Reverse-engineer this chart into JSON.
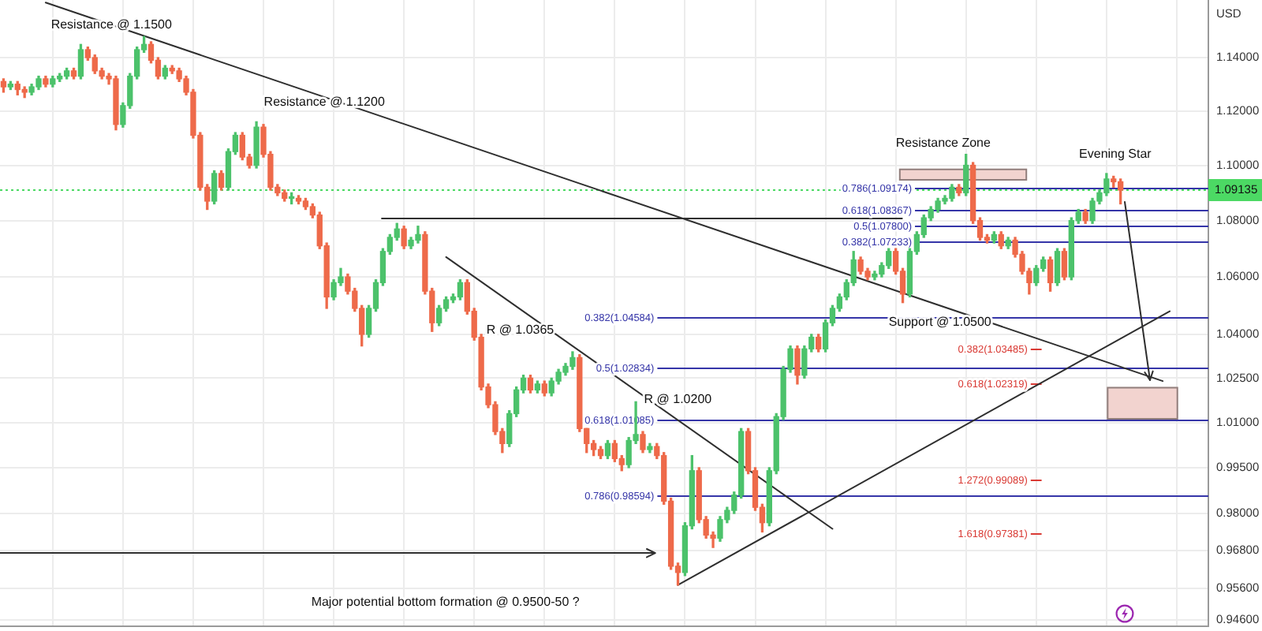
{
  "chart_data": {
    "type": "candlestick",
    "ylabel": "USD",
    "log": true,
    "grid": true,
    "tick_labels": "y",
    "marker": "none",
    "ylim": [
      0.944,
      1.162
    ],
    "yticks": [
      {
        "value": 0.946,
        "label": "0.94600"
      },
      {
        "value": 0.956,
        "label": "0.95600"
      },
      {
        "value": 0.968,
        "label": "0.96800"
      },
      {
        "value": 0.98,
        "label": "0.98000"
      },
      {
        "value": 0.995,
        "label": "0.99500"
      },
      {
        "value": 1.01,
        "label": "1.01000"
      },
      {
        "value": 1.025,
        "label": "1.02500"
      },
      {
        "value": 1.04,
        "label": "1.04000"
      },
      {
        "value": 1.06,
        "label": "1.06000"
      },
      {
        "value": 1.08,
        "label": "1.08000"
      },
      {
        "value": 1.1,
        "label": "1.10000"
      },
      {
        "value": 1.12,
        "label": "1.12000"
      },
      {
        "value": 1.14,
        "label": "1.14000"
      }
    ],
    "categories": [
      null,
      null,
      null,
      null,
      null,
      null,
      null,
      null,
      null,
      null,
      null,
      null,
      null,
      null,
      null,
      null,
      null,
      null,
      null,
      null,
      null,
      null,
      null,
      null,
      null,
      null,
      null,
      null,
      null,
      null,
      null,
      null,
      null,
      null,
      null,
      null,
      null,
      null,
      null,
      null,
      null,
      null,
      null,
      null,
      null,
      null,
      null,
      null,
      null,
      null,
      null,
      null,
      null,
      null,
      null,
      null,
      null,
      null,
      null,
      null,
      null,
      null,
      null,
      null,
      null,
      null,
      null,
      null,
      null,
      null,
      null,
      null,
      null,
      null,
      null,
      null,
      null,
      null,
      null,
      null,
      null,
      null,
      null,
      null,
      null,
      null,
      null,
      null,
      null,
      null,
      null,
      null,
      null,
      null,
      null,
      null,
      null,
      null,
      null,
      null,
      null,
      null,
      null,
      null,
      null,
      null,
      null,
      null,
      null,
      null,
      null,
      null,
      null,
      null,
      null,
      null,
      null,
      null,
      null,
      null,
      null,
      null,
      null,
      null,
      null,
      null,
      null,
      null,
      null,
      null,
      null,
      null,
      null,
      null,
      null,
      null,
      null,
      null,
      null,
      null,
      null,
      null,
      null,
      null,
      null,
      null,
      null,
      null,
      null,
      null,
      null,
      null,
      null,
      null,
      null,
      null,
      null,
      null,
      null,
      null,
      null,
      null,
      null,
      null,
      null,
      null,
      null,
      null,
      null,
      null,
      null,
      null
    ],
    "ohlc": [
      [
        1.131,
        1.132,
        1.127,
        1.129
      ],
      [
        1.129,
        1.131,
        1.128,
        1.13
      ],
      [
        1.13,
        1.131,
        1.126,
        1.128
      ],
      [
        1.128,
        1.129,
        1.125,
        1.127
      ],
      [
        1.127,
        1.13,
        1.126,
        1.129
      ],
      [
        1.129,
        1.133,
        1.128,
        1.132
      ],
      [
        1.132,
        1.133,
        1.129,
        1.13
      ],
      [
        1.13,
        1.133,
        1.129,
        1.132
      ],
      [
        1.132,
        1.134,
        1.131,
        1.133
      ],
      [
        1.133,
        1.136,
        1.132,
        1.135
      ],
      [
        1.135,
        1.136,
        1.132,
        1.133
      ],
      [
        1.133,
        1.145,
        1.132,
        1.143
      ],
      [
        1.143,
        1.144,
        1.139,
        1.14
      ],
      [
        1.14,
        1.141,
        1.134,
        1.135
      ],
      [
        1.135,
        1.136,
        1.132,
        1.133
      ],
      [
        1.133,
        1.134,
        1.13,
        1.132
      ],
      [
        1.132,
        1.133,
        1.113,
        1.115
      ],
      [
        1.115,
        1.123,
        1.114,
        1.122
      ],
      [
        1.122,
        1.134,
        1.121,
        1.133
      ],
      [
        1.133,
        1.144,
        1.132,
        1.143
      ],
      [
        1.143,
        1.148,
        1.142,
        1.145
      ],
      [
        1.145,
        1.146,
        1.138,
        1.139
      ],
      [
        1.139,
        1.14,
        1.132,
        1.133
      ],
      [
        1.133,
        1.137,
        1.132,
        1.136
      ],
      [
        1.136,
        1.137,
        1.134,
        1.135
      ],
      [
        1.135,
        1.136,
        1.131,
        1.132
      ],
      [
        1.132,
        1.133,
        1.126,
        1.127
      ],
      [
        1.127,
        1.128,
        1.11,
        1.111
      ],
      [
        1.111,
        1.112,
        1.091,
        1.092
      ],
      [
        1.092,
        1.093,
        1.084,
        1.087
      ],
      [
        1.087,
        1.098,
        1.086,
        1.097
      ],
      [
        1.097,
        1.098,
        1.091,
        1.092
      ],
      [
        1.092,
        1.106,
        1.091,
        1.105
      ],
      [
        1.105,
        1.112,
        1.104,
        1.111
      ],
      [
        1.111,
        1.112,
        1.102,
        1.103
      ],
      [
        1.103,
        1.104,
        1.099,
        1.1
      ],
      [
        1.1,
        1.116,
        1.099,
        1.114
      ],
      [
        1.114,
        1.115,
        1.103,
        1.104
      ],
      [
        1.104,
        1.105,
        1.091,
        1.092
      ],
      [
        1.092,
        1.093,
        1.089,
        1.09
      ],
      [
        1.09,
        1.091,
        1.087,
        1.088
      ],
      [
        1.088,
        1.09,
        1.086,
        1.088
      ],
      [
        1.088,
        1.089,
        1.086,
        1.087
      ],
      [
        1.087,
        1.088,
        1.084,
        1.085
      ],
      [
        1.085,
        1.086,
        1.081,
        1.082
      ],
      [
        1.082,
        1.083,
        1.07,
        1.071
      ],
      [
        1.071,
        1.072,
        1.049,
        1.053
      ],
      [
        1.053,
        1.059,
        1.052,
        1.058
      ],
      [
        1.058,
        1.063,
        1.057,
        1.06
      ],
      [
        1.06,
        1.061,
        1.054,
        1.055
      ],
      [
        1.055,
        1.056,
        1.048,
        1.049
      ],
      [
        1.049,
        1.05,
        1.036,
        1.04
      ],
      [
        1.04,
        1.05,
        1.039,
        1.049
      ],
      [
        1.049,
        1.059,
        1.048,
        1.058
      ],
      [
        1.058,
        1.07,
        1.057,
        1.069
      ],
      [
        1.069,
        1.075,
        1.068,
        1.074
      ],
      [
        1.074,
        1.079,
        1.073,
        1.077
      ],
      [
        1.077,
        1.078,
        1.07,
        1.071
      ],
      [
        1.071,
        1.074,
        1.07,
        1.073
      ],
      [
        1.073,
        1.078,
        1.072,
        1.075
      ],
      [
        1.075,
        1.076,
        1.054,
        1.055
      ],
      [
        1.055,
        1.056,
        1.041,
        1.044
      ],
      [
        1.044,
        1.05,
        1.043,
        1.049
      ],
      [
        1.049,
        1.053,
        1.048,
        1.052
      ],
      [
        1.052,
        1.054,
        1.051,
        1.053
      ],
      [
        1.053,
        1.059,
        1.052,
        1.058
      ],
      [
        1.058,
        1.059,
        1.047,
        1.048
      ],
      [
        1.048,
        1.049,
        1.038,
        1.039
      ],
      [
        1.039,
        1.04,
        1.021,
        1.022
      ],
      [
        1.022,
        1.023,
        1.015,
        1.016
      ],
      [
        1.016,
        1.017,
        1.006,
        1.007
      ],
      [
        1.007,
        1.008,
        1.0,
        1.003
      ],
      [
        1.003,
        1.014,
        1.002,
        1.013
      ],
      [
        1.013,
        1.022,
        1.012,
        1.021
      ],
      [
        1.021,
        1.026,
        1.02,
        1.025
      ],
      [
        1.025,
        1.026,
        1.02,
        1.021
      ],
      [
        1.021,
        1.024,
        1.02,
        1.023
      ],
      [
        1.023,
        1.024,
        1.019,
        1.02
      ],
      [
        1.02,
        1.025,
        1.019,
        1.024
      ],
      [
        1.024,
        1.028,
        1.023,
        1.027
      ],
      [
        1.027,
        1.03,
        1.026,
        1.029
      ],
      [
        1.029,
        1.034,
        1.028,
        1.032
      ],
      [
        1.032,
        1.033,
        1.007,
        1.008
      ],
      [
        1.008,
        1.008,
        1.0,
        1.003
      ],
      [
        1.003,
        1.004,
        0.999,
        1.001
      ],
      [
        1.001,
        1.002,
        0.998,
        0.999
      ],
      [
        0.999,
        1.004,
        0.998,
        1.003
      ],
      [
        1.003,
        1.004,
        0.997,
        0.998
      ],
      [
        0.998,
        0.999,
        0.994,
        0.996
      ],
      [
        0.996,
        1.005,
        0.995,
        1.004
      ],
      [
        1.004,
        1.017,
        1.003,
        1.006
      ],
      [
        1.006,
        1.007,
        1.0,
        1.001
      ],
      [
        1.001,
        1.003,
        1.0,
        1.002
      ],
      [
        1.002,
        1.003,
        0.998,
        0.999
      ],
      [
        0.999,
        1.0,
        0.983,
        0.984
      ],
      [
        0.984,
        0.985,
        0.962,
        0.963
      ],
      [
        0.963,
        0.964,
        0.957,
        0.961
      ],
      [
        0.961,
        0.977,
        0.96,
        0.976
      ],
      [
        0.976,
        0.999,
        0.975,
        0.994
      ],
      [
        0.994,
        0.995,
        0.977,
        0.978
      ],
      [
        0.978,
        0.979,
        0.972,
        0.973
      ],
      [
        0.973,
        0.974,
        0.969,
        0.972
      ],
      [
        0.972,
        0.979,
        0.971,
        0.978
      ],
      [
        0.978,
        0.982,
        0.977,
        0.981
      ],
      [
        0.981,
        0.987,
        0.98,
        0.986
      ],
      [
        0.986,
        1.008,
        0.985,
        1.007
      ],
      [
        1.007,
        1.008,
        0.993,
        0.994
      ],
      [
        0.994,
        0.995,
        0.981,
        0.982
      ],
      [
        0.982,
        0.983,
        0.974,
        0.977
      ],
      [
        0.977,
        0.995,
        0.976,
        0.994
      ],
      [
        0.994,
        1.013,
        0.993,
        1.012
      ],
      [
        1.012,
        1.029,
        1.011,
        1.028
      ],
      [
        1.028,
        1.036,
        1.027,
        1.035
      ],
      [
        1.035,
        1.036,
        1.023,
        1.026
      ],
      [
        1.026,
        1.036,
        1.025,
        1.035
      ],
      [
        1.035,
        1.04,
        1.034,
        1.039
      ],
      [
        1.039,
        1.04,
        1.034,
        1.035
      ],
      [
        1.035,
        1.045,
        1.034,
        1.044
      ],
      [
        1.044,
        1.05,
        1.043,
        1.049
      ],
      [
        1.049,
        1.054,
        1.048,
        1.053
      ],
      [
        1.053,
        1.059,
        1.052,
        1.058
      ],
      [
        1.058,
        1.069,
        1.057,
        1.066
      ],
      [
        1.066,
        1.067,
        1.061,
        1.062
      ],
      [
        1.062,
        1.063,
        1.059,
        1.06
      ],
      [
        1.06,
        1.062,
        1.059,
        1.061
      ],
      [
        1.061,
        1.065,
        1.06,
        1.064
      ],
      [
        1.064,
        1.07,
        1.063,
        1.069
      ],
      [
        1.069,
        1.07,
        1.061,
        1.062
      ],
      [
        1.062,
        1.063,
        1.051,
        1.054
      ],
      [
        1.054,
        1.07,
        1.053,
        1.069
      ],
      [
        1.069,
        1.076,
        1.068,
        1.075
      ],
      [
        1.075,
        1.082,
        1.074,
        1.081
      ],
      [
        1.081,
        1.085,
        1.08,
        1.084
      ],
      [
        1.084,
        1.088,
        1.083,
        1.087
      ],
      [
        1.087,
        1.089,
        1.086,
        1.088
      ],
      [
        1.088,
        1.093,
        1.087,
        1.092
      ],
      [
        1.092,
        1.093,
        1.089,
        1.09
      ],
      [
        1.09,
        1.104,
        1.089,
        1.1
      ],
      [
        1.1,
        1.101,
        1.079,
        1.08
      ],
      [
        1.08,
        1.081,
        1.073,
        1.074
      ],
      [
        1.074,
        1.075,
        1.072,
        1.073
      ],
      [
        1.073,
        1.076,
        1.072,
        1.075
      ],
      [
        1.075,
        1.076,
        1.07,
        1.071
      ],
      [
        1.071,
        1.074,
        1.07,
        1.073
      ],
      [
        1.073,
        1.074,
        1.067,
        1.068
      ],
      [
        1.068,
        1.069,
        1.061,
        1.062
      ],
      [
        1.062,
        1.063,
        1.054,
        1.058
      ],
      [
        1.058,
        1.064,
        1.057,
        1.063
      ],
      [
        1.063,
        1.067,
        1.062,
        1.066
      ],
      [
        1.066,
        1.067,
        1.055,
        1.058
      ],
      [
        1.058,
        1.07,
        1.057,
        1.069
      ],
      [
        1.069,
        1.07,
        1.059,
        1.06
      ],
      [
        1.06,
        1.081,
        1.059,
        1.08
      ],
      [
        1.08,
        1.084,
        1.079,
        1.083
      ],
      [
        1.083,
        1.084,
        1.079,
        1.08
      ],
      [
        1.08,
        1.088,
        1.079,
        1.087
      ],
      [
        1.087,
        1.091,
        1.086,
        1.09
      ],
      [
        1.09,
        1.097,
        1.089,
        1.095
      ],
      [
        1.095,
        1.096,
        1.092,
        1.094
      ],
      [
        1.094,
        1.095,
        1.086,
        1.091
      ],
      null,
      null,
      null,
      null,
      null,
      null,
      null,
      null,
      null,
      null,
      null,
      null
    ],
    "colors": [
      "#ee6a4a",
      "#4cc26b",
      "#ee6a4a",
      "#ee6a4a",
      "#4cc26b",
      "#4cc26b",
      "#ee6a4a",
      "#4cc26b",
      "#4cc26b",
      "#4cc26b",
      "#ee6a4a",
      "#4cc26b",
      "#ee6a4a",
      "#ee6a4a",
      "#ee6a4a",
      "#ee6a4a",
      "#ee6a4a",
      "#4cc26b",
      "#4cc26b",
      "#4cc26b",
      "#4cc26b",
      "#ee6a4a",
      "#ee6a4a",
      "#4cc26b",
      "#ee6a4a",
      "#ee6a4a",
      "#ee6a4a",
      "#ee6a4a",
      "#ee6a4a",
      "#ee6a4a",
      "#4cc26b",
      "#ee6a4a",
      "#4cc26b",
      "#4cc26b",
      "#ee6a4a",
      "#ee6a4a",
      "#4cc26b",
      "#ee6a4a",
      "#ee6a4a",
      "#ee6a4a",
      "#ee6a4a",
      "#4cc26b",
      "#ee6a4a",
      "#ee6a4a",
      "#ee6a4a",
      "#ee6a4a",
      "#ee6a4a",
      "#4cc26b",
      "#4cc26b",
      "#ee6a4a",
      "#ee6a4a",
      "#ee6a4a",
      "#4cc26b",
      "#4cc26b",
      "#4cc26b",
      "#4cc26b",
      "#4cc26b",
      "#ee6a4a",
      "#4cc26b",
      "#4cc26b",
      "#ee6a4a",
      "#ee6a4a",
      "#4cc26b",
      "#4cc26b",
      "#4cc26b",
      "#4cc26b",
      "#ee6a4a",
      "#ee6a4a",
      "#ee6a4a",
      "#ee6a4a",
      "#ee6a4a",
      "#ee6a4a",
      "#4cc26b",
      "#4cc26b",
      "#4cc26b",
      "#ee6a4a",
      "#4cc26b",
      "#ee6a4a",
      "#4cc26b",
      "#4cc26b",
      "#4cc26b",
      "#4cc26b",
      "#ee6a4a",
      "#ee6a4a",
      "#ee6a4a",
      "#ee6a4a",
      "#4cc26b",
      "#ee6a4a",
      "#ee6a4a",
      "#4cc26b",
      "#4cc26b",
      "#ee6a4a",
      "#4cc26b",
      "#ee6a4a",
      "#ee6a4a",
      "#ee6a4a",
      "#ee6a4a",
      "#4cc26b",
      "#4cc26b",
      "#ee6a4a",
      "#ee6a4a",
      "#ee6a4a",
      "#4cc26b",
      "#4cc26b",
      "#4cc26b",
      "#4cc26b",
      "#ee6a4a",
      "#ee6a4a",
      "#ee6a4a",
      "#4cc26b",
      "#4cc26b",
      "#4cc26b",
      "#4cc26b",
      "#ee6a4a",
      "#4cc26b",
      "#4cc26b",
      "#ee6a4a",
      "#4cc26b",
      "#4cc26b",
      "#4cc26b",
      "#4cc26b",
      "#4cc26b",
      "#ee6a4a",
      "#ee6a4a",
      "#4cc26b",
      "#4cc26b",
      "#4cc26b",
      "#ee6a4a",
      "#ee6a4a",
      "#4cc26b",
      "#4cc26b",
      "#4cc26b",
      "#4cc26b",
      "#4cc26b",
      "#4cc26b",
      "#4cc26b",
      "#ee6a4a",
      "#4cc26b",
      "#ee6a4a",
      "#ee6a4a",
      "#ee6a4a",
      "#4cc26b",
      "#ee6a4a",
      "#4cc26b",
      "#ee6a4a",
      "#ee6a4a",
      "#ee6a4a",
      "#4cc26b",
      "#4cc26b",
      "#ee6a4a",
      "#4cc26b",
      "#ee6a4a",
      "#4cc26b",
      "#4cc26b",
      "#ee6a4a",
      "#4cc26b",
      "#4cc26b",
      "#4cc26b",
      "#ee6a4a",
      "#ee6a4a",
      null,
      null,
      null,
      null,
      null,
      null,
      null,
      null,
      null,
      null,
      null,
      null
    ],
    "series": [
      {
        "type": "line",
        "color": "#2f2f2f",
        "values": [
          null,
          null,
          null,
          null,
          null,
          null,
          1.161,
          null,
          null,
          null,
          null,
          null,
          null,
          null,
          null,
          null,
          null,
          null,
          null,
          null,
          null,
          null,
          null,
          null,
          null,
          null,
          null,
          null,
          null,
          null,
          null,
          null,
          null,
          null,
          null,
          null,
          null,
          null,
          null,
          null,
          null,
          null,
          null,
          null,
          null,
          null,
          null,
          null,
          null,
          null,
          null,
          null,
          null,
          null,
          null,
          null,
          null,
          null,
          null,
          null,
          null,
          null,
          null,
          null,
          null,
          null,
          null,
          null,
          null,
          null,
          null,
          null,
          null,
          null,
          null,
          null,
          null,
          null,
          null,
          null,
          null,
          null,
          null,
          null,
          null,
          null,
          null,
          null,
          null,
          null,
          null,
          null,
          null,
          null,
          null,
          null,
          null,
          null,
          null,
          null,
          null,
          null,
          null,
          null,
          null,
          null,
          null,
          null,
          null,
          null,
          null,
          null,
          null,
          null,
          null,
          null,
          null,
          null,
          null,
          null,
          null,
          null,
          null,
          null,
          null,
          null,
          null,
          null,
          null,
          null,
          null,
          null,
          null,
          null,
          null,
          null,
          null,
          null,
          null,
          null,
          null,
          null,
          null,
          null,
          null,
          null,
          null,
          null,
          null,
          null,
          null,
          null,
          null,
          null,
          null,
          null,
          null,
          null,
          null,
          null,
          null,
          null,
          null,
          null,
          null,
          1.024,
          null,
          null,
          null,
          null,
          null,
          null
        ]
      },
      {
        "type": "line",
        "color": "#2f2f2f",
        "values": [
          null,
          null,
          null,
          null,
          null,
          null,
          null,
          null,
          null,
          null,
          null,
          null,
          null,
          null,
          null,
          null,
          null,
          null,
          null,
          null,
          null,
          null,
          null,
          null,
          null,
          null,
          null,
          null,
          null,
          null,
          null,
          null,
          null,
          null,
          null,
          null,
          null,
          null,
          null,
          null,
          null,
          null,
          null,
          null,
          null,
          null,
          null,
          null,
          null,
          null,
          null,
          null,
          null,
          null,
          null,
          null,
          null,
          null,
          null,
          null,
          null,
          null,
          null,
          1.067,
          null,
          null,
          null,
          null,
          null,
          null,
          null,
          null,
          null,
          null,
          null,
          null,
          null,
          null,
          null,
          null,
          null,
          null,
          null,
          null,
          null,
          null,
          null,
          null,
          null,
          null,
          null,
          null,
          null,
          null,
          null,
          null,
          null,
          null,
          null,
          null,
          null,
          null,
          null,
          null,
          null,
          null,
          null,
          null,
          null,
          null,
          null,
          null,
          null,
          null,
          null,
          null,
          null,
          null,
          0.975,
          null,
          null,
          null,
          null,
          null,
          null,
          null,
          null,
          null,
          null,
          null,
          null,
          null,
          null,
          null,
          null,
          null,
          null,
          null,
          null,
          null,
          null,
          null,
          null,
          null,
          null,
          null,
          null,
          null,
          null,
          null,
          null,
          null,
          null,
          null,
          null,
          null,
          null,
          null,
          null,
          null,
          null,
          null,
          null,
          null,
          null,
          null,
          null,
          null,
          null,
          null,
          null,
          null
        ]
      },
      {
        "type": "line",
        "color": "#2f2f2f",
        "values": [
          null,
          null,
          null,
          null,
          null,
          null,
          null,
          null,
          null,
          null,
          null,
          null,
          null,
          null,
          null,
          null,
          null,
          null,
          null,
          null,
          null,
          null,
          null,
          null,
          null,
          null,
          null,
          null,
          null,
          null,
          null,
          null,
          null,
          null,
          null,
          null,
          null,
          null,
          null,
          null,
          null,
          null,
          null,
          null,
          null,
          null,
          null,
          null,
          null,
          null,
          null,
          null,
          null,
          null,
          null,
          null,
          null,
          null,
          null,
          null,
          null,
          null,
          null,
          null,
          null,
          null,
          null,
          null,
          null,
          null,
          null,
          null,
          null,
          null,
          null,
          null,
          null,
          null,
          null,
          null,
          null,
          null,
          null,
          null,
          null,
          null,
          null,
          null,
          null,
          null,
          null,
          null,
          null,
          null,
          null,
          null,
          0.957,
          null,
          null,
          null,
          null,
          null,
          null,
          null,
          null,
          null,
          null,
          null,
          null,
          null,
          null,
          null,
          null,
          null,
          null,
          null,
          null,
          null,
          null,
          null,
          null,
          null,
          null,
          null,
          null,
          null,
          null,
          null,
          null,
          null,
          null,
          null,
          null,
          null,
          null,
          null,
          null,
          null,
          null,
          null,
          null,
          null,
          null,
          null,
          null,
          null,
          null,
          null,
          null,
          null,
          null,
          null,
          null,
          null,
          null,
          null,
          null,
          null,
          null,
          null,
          null,
          null,
          null,
          null,
          null,
          null,
          1.048,
          null,
          null,
          null,
          null,
          null
        ]
      }
    ],
    "ref_lines": [
      {
        "axis": "y",
        "value": 1.04584,
        "label": "0.382(1.04584)",
        "color": "#3535a8"
      },
      {
        "axis": "y",
        "value": 1.02834,
        "label": "0.5(1.02834)",
        "color": "#3535a8"
      },
      {
        "axis": "y",
        "value": 1.01085,
        "label": "0.618(1.01085)",
        "color": "#3535a8"
      },
      {
        "axis": "y",
        "value": 0.98594,
        "label": "0.786(0.98594)",
        "color": "#3535a8"
      },
      {
        "axis": "y",
        "value": 1.09174,
        "label": "0.786(1.09174)",
        "color": "#3535a8"
      },
      {
        "axis": "y",
        "value": 1.08367,
        "label": "0.618(1.08367)",
        "color": "#3535a8"
      },
      {
        "axis": "y",
        "value": 1.078,
        "label": "0.5(1.07800)",
        "color": "#3535a8"
      },
      {
        "axis": "y",
        "value": 1.07233,
        "label": "0.382(1.07233)",
        "color": "#3535a8"
      },
      {
        "axis": "y",
        "value": 1.03485,
        "label": "0.382(1.03485)",
        "color": "#d93a34"
      },
      {
        "axis": "y",
        "value": 1.02319,
        "label": "0.618(1.02319)",
        "color": "#d93a34"
      },
      {
        "axis": "y",
        "value": 0.99089,
        "label": "1.272(0.99089)",
        "color": "#d93a34"
      },
      {
        "axis": "y",
        "value": 0.97381,
        "label": "1.618(0.97381)",
        "color": "#d93a34"
      },
      {
        "axis": "y",
        "value": 1.0813,
        "color": "#2f2f2f"
      },
      {
        "axis": "y",
        "value": 0.9675,
        "color": "#2f2f2f"
      },
      {
        "axis": "y",
        "value": 1.09135,
        "label": "1.09135",
        "color": "#4cd964",
        "line_style": "dotted"
      }
    ],
    "bands": [
      {
        "axis": "y",
        "from": 1.0944,
        "to": 1.0988,
        "label": "Resistance Zone",
        "color": "#f2d3cf"
      },
      {
        "axis": "y",
        "from": 1.011,
        "to": 1.022,
        "color": "#f2d3cf"
      }
    ],
    "annotations": [
      "Resistance @ 1.1500",
      "Resistance @ 1.1200",
      "R @ 1.0365",
      "R @ 1.0200",
      "Support @ 1.0500",
      "Evening Star",
      "Major potential bottom formation @ 0.9500-50 ?"
    ]
  }
}
